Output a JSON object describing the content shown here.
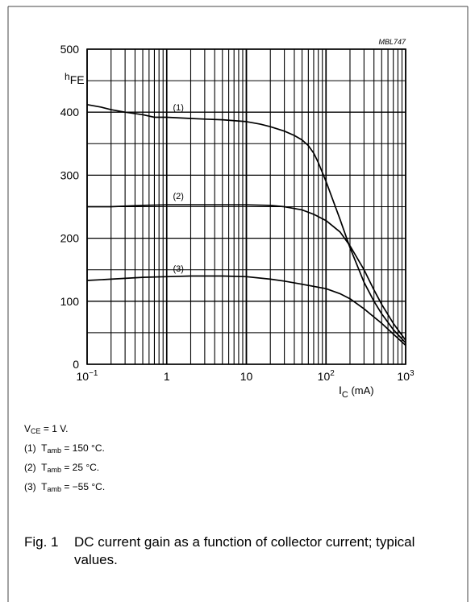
{
  "tag": "MBL747",
  "chart_data": {
    "type": "line",
    "xscale": "log",
    "xlim": [
      0.1,
      1000
    ],
    "ylim": [
      0,
      500
    ],
    "grid": true,
    "ylabel": {
      "main": "h",
      "sub": "FE"
    },
    "xlabel": {
      "main": "I",
      "sub": "C",
      "unit": " (mA)"
    },
    "x_ticks": [
      {
        "value": 0.1,
        "base": "10",
        "exp": "−1"
      },
      {
        "value": 1,
        "text": "1"
      },
      {
        "value": 10,
        "text": "10"
      },
      {
        "value": 100,
        "base": "10",
        "exp": "2"
      },
      {
        "value": 1000,
        "base": "10",
        "exp": "3"
      }
    ],
    "y_ticks": [
      0,
      100,
      200,
      300,
      400,
      500
    ],
    "series": [
      {
        "label": "(1)",
        "label_at": [
          1.4,
          403
        ],
        "points": [
          [
            0.1,
            412
          ],
          [
            0.15,
            408
          ],
          [
            0.2,
            404
          ],
          [
            0.3,
            400
          ],
          [
            0.5,
            396
          ],
          [
            0.7,
            392
          ],
          [
            1,
            392
          ],
          [
            2,
            390
          ],
          [
            3,
            389
          ],
          [
            5,
            388
          ],
          [
            10,
            385
          ],
          [
            15,
            381
          ],
          [
            20,
            377
          ],
          [
            30,
            370
          ],
          [
            40,
            363
          ],
          [
            50,
            356
          ],
          [
            60,
            347
          ],
          [
            70,
            335
          ],
          [
            80,
            320
          ],
          [
            100,
            290
          ],
          [
            150,
            230
          ],
          [
            200,
            185
          ],
          [
            300,
            130
          ],
          [
            400,
            100
          ],
          [
            500,
            80
          ],
          [
            700,
            55
          ],
          [
            1000,
            34
          ]
        ]
      },
      {
        "label": "(2)",
        "label_at": [
          1.4,
          262
        ],
        "points": [
          [
            0.1,
            250
          ],
          [
            0.2,
            250
          ],
          [
            0.5,
            252
          ],
          [
            1,
            253
          ],
          [
            3,
            253
          ],
          [
            10,
            253
          ],
          [
            20,
            252
          ],
          [
            30,
            250
          ],
          [
            50,
            245
          ],
          [
            70,
            238
          ],
          [
            100,
            228
          ],
          [
            150,
            210
          ],
          [
            200,
            188
          ],
          [
            300,
            150
          ],
          [
            400,
            118
          ],
          [
            500,
            95
          ],
          [
            700,
            65
          ],
          [
            1000,
            38
          ]
        ]
      },
      {
        "label": "(3)",
        "label_at": [
          1.4,
          147
        ],
        "points": [
          [
            0.1,
            133
          ],
          [
            0.2,
            135
          ],
          [
            0.5,
            138
          ],
          [
            1,
            139
          ],
          [
            2,
            140
          ],
          [
            5,
            140
          ],
          [
            10,
            139
          ],
          [
            20,
            135
          ],
          [
            30,
            132
          ],
          [
            50,
            127
          ],
          [
            100,
            120
          ],
          [
            150,
            112
          ],
          [
            200,
            104
          ],
          [
            300,
            88
          ],
          [
            400,
            75
          ],
          [
            500,
            65
          ],
          [
            700,
            48
          ],
          [
            1000,
            30
          ]
        ]
      }
    ]
  },
  "notes": {
    "vce": {
      "pre": "V",
      "sub": "CE",
      "post": " = 1 V."
    },
    "items": [
      {
        "num": "(1)",
        "pre": "T",
        "sub": "amb",
        "post": " = 150 °C."
      },
      {
        "num": "(2)",
        "pre": "T",
        "sub": "amb",
        "post": " = 25 °C."
      },
      {
        "num": "(3)",
        "pre": "T",
        "sub": "amb",
        "post": " = −55 °C."
      }
    ]
  },
  "caption": {
    "fig": "Fig. 1",
    "text": "DC current gain as a function of collector current; typical values."
  }
}
